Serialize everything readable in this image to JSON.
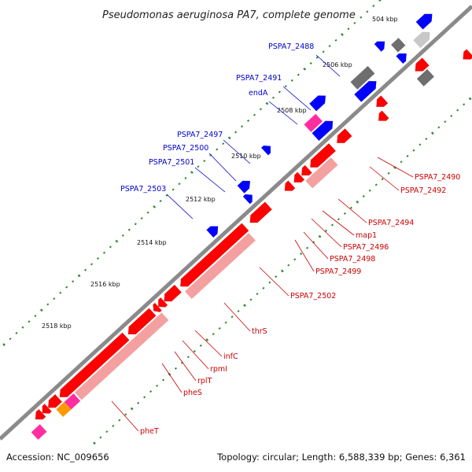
{
  "title": "Pseudomonas aeruginosa PA7, complete genome",
  "footer": {
    "accession": "Accession: NC_009656",
    "topology": "Topology: circular; Length: 6,588,339 bp; Genes: 6,361"
  },
  "colors": {
    "backbone": "#8a8a8a",
    "forward_gene": "#0000ff",
    "reverse_gene": "#ff0000",
    "reverse_gene_light": "#f4a0a0",
    "grey_gene": "#6e6e6e",
    "light_grey_gene": "#c8c8c8",
    "rna": "#ff2ea0",
    "orange_feature": "#ff9900",
    "forward_label": "#0000cc",
    "reverse_label": "#cc0000",
    "tick_dot": "#2e8b2e"
  },
  "ticks": [
    {
      "label": "504 kbp"
    },
    {
      "label": "2506 kbp"
    },
    {
      "label": "2508 kbp"
    },
    {
      "label": "2510 kbp"
    },
    {
      "label": "2512 kbp"
    },
    {
      "label": "2514 kbp"
    },
    {
      "label": "2516 kbp"
    },
    {
      "label": "2518 kbp"
    }
  ],
  "forward_labels": [
    {
      "name": "PSPA7_2488"
    },
    {
      "name": "PSPA7_2491"
    },
    {
      "name": "endA"
    },
    {
      "name": "PSPA7_2497"
    },
    {
      "name": "PSPA7_2500"
    },
    {
      "name": "PSPA7_2501"
    },
    {
      "name": "PSPA7_2503"
    }
  ],
  "reverse_labels": [
    {
      "name": "PSPA7_2490"
    },
    {
      "name": "PSPA7_2492"
    },
    {
      "name": "PSPA7_2494"
    },
    {
      "name": "map1"
    },
    {
      "name": "PSPA7_2496"
    },
    {
      "name": "PSPA7_2498"
    },
    {
      "name": "PSPA7_2499"
    },
    {
      "name": "PSPA7_2502"
    },
    {
      "name": "thrS"
    },
    {
      "name": "infC"
    },
    {
      "name": "rpmI"
    },
    {
      "name": "rplT"
    },
    {
      "name": "pheS"
    },
    {
      "name": "pheT"
    }
  ]
}
